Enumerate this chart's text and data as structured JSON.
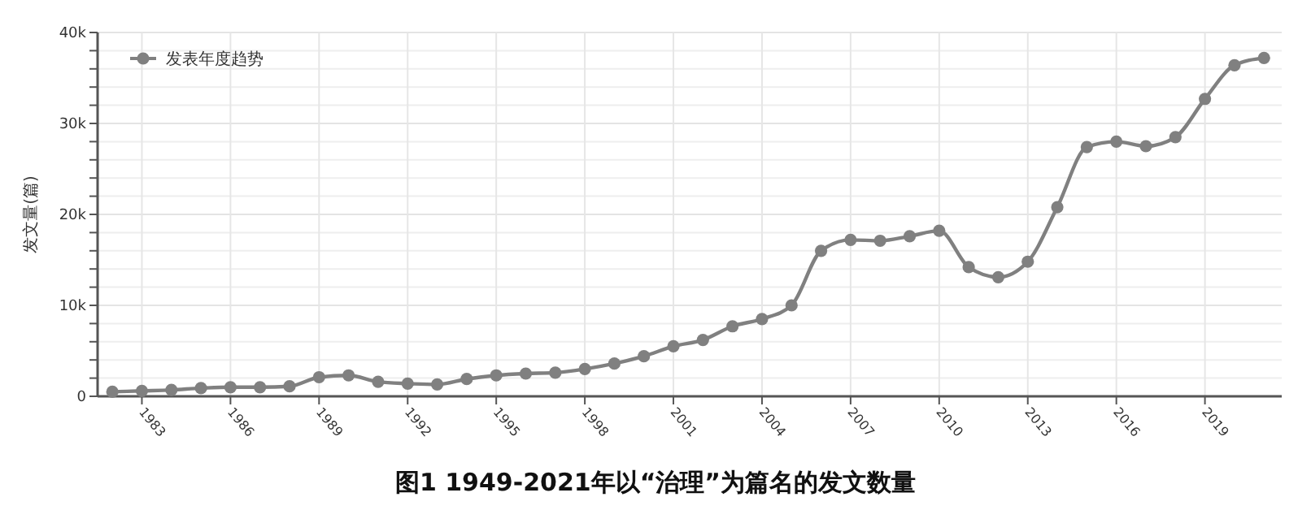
{
  "chart_data": {
    "type": "line",
    "title": "图1 1949-2021年以“治理”为篇名的发文数量",
    "ylabel": "发文量(篇)",
    "x": [
      1982,
      1983,
      1984,
      1985,
      1986,
      1987,
      1988,
      1989,
      1990,
      1991,
      1992,
      1993,
      1994,
      1995,
      1996,
      1997,
      1998,
      1999,
      2000,
      2001,
      2002,
      2003,
      2004,
      2005,
      2006,
      2007,
      2008,
      2009,
      2010,
      2011,
      2012,
      2013,
      2014,
      2015,
      2016,
      2017,
      2018,
      2019,
      2020,
      2021
    ],
    "series": [
      {
        "name": "发表年度趋势",
        "color": "#808080",
        "values": [
          500,
          600,
          700,
          900,
          1000,
          1000,
          1100,
          2100,
          2300,
          1600,
          1400,
          1300,
          1900,
          2300,
          2500,
          2600,
          3000,
          3600,
          4400,
          5500,
          6200,
          7700,
          8500,
          10000,
          16000,
          17200,
          17100,
          17600,
          18200,
          14200,
          13100,
          14800,
          20800,
          27400,
          28000,
          27500,
          28500,
          32700,
          36400,
          37200
        ]
      }
    ],
    "xlim": [
      1981.5,
      2021.6
    ],
    "xticks": [
      1983,
      1986,
      1989,
      1992,
      1995,
      1998,
      2001,
      2004,
      2007,
      2010,
      2013,
      2016,
      2019
    ],
    "ylim": [
      0,
      40000
    ],
    "yticks": [
      {
        "value": 0,
        "label": "0"
      },
      {
        "value": 2000,
        "label": null
      },
      {
        "value": 4000,
        "label": null
      },
      {
        "value": 6000,
        "label": null
      },
      {
        "value": 8000,
        "label": null
      },
      {
        "value": 10000,
        "label": "10k"
      },
      {
        "value": 12000,
        "label": null
      },
      {
        "value": 14000,
        "label": null
      },
      {
        "value": 16000,
        "label": null
      },
      {
        "value": 18000,
        "label": null
      },
      {
        "value": 20000,
        "label": "20k"
      },
      {
        "value": 22000,
        "label": null
      },
      {
        "value": 24000,
        "label": null
      },
      {
        "value": 26000,
        "label": null
      },
      {
        "value": 28000,
        "label": null
      },
      {
        "value": 30000,
        "label": "30k"
      },
      {
        "value": 32000,
        "label": null
      },
      {
        "value": 34000,
        "label": null
      },
      {
        "value": 36000,
        "label": null
      },
      {
        "value": 38000,
        "label": null
      },
      {
        "value": 40000,
        "label": "40k"
      }
    ],
    "grid": true,
    "legend": "top left",
    "marker": "circle",
    "line_style": "solid"
  }
}
